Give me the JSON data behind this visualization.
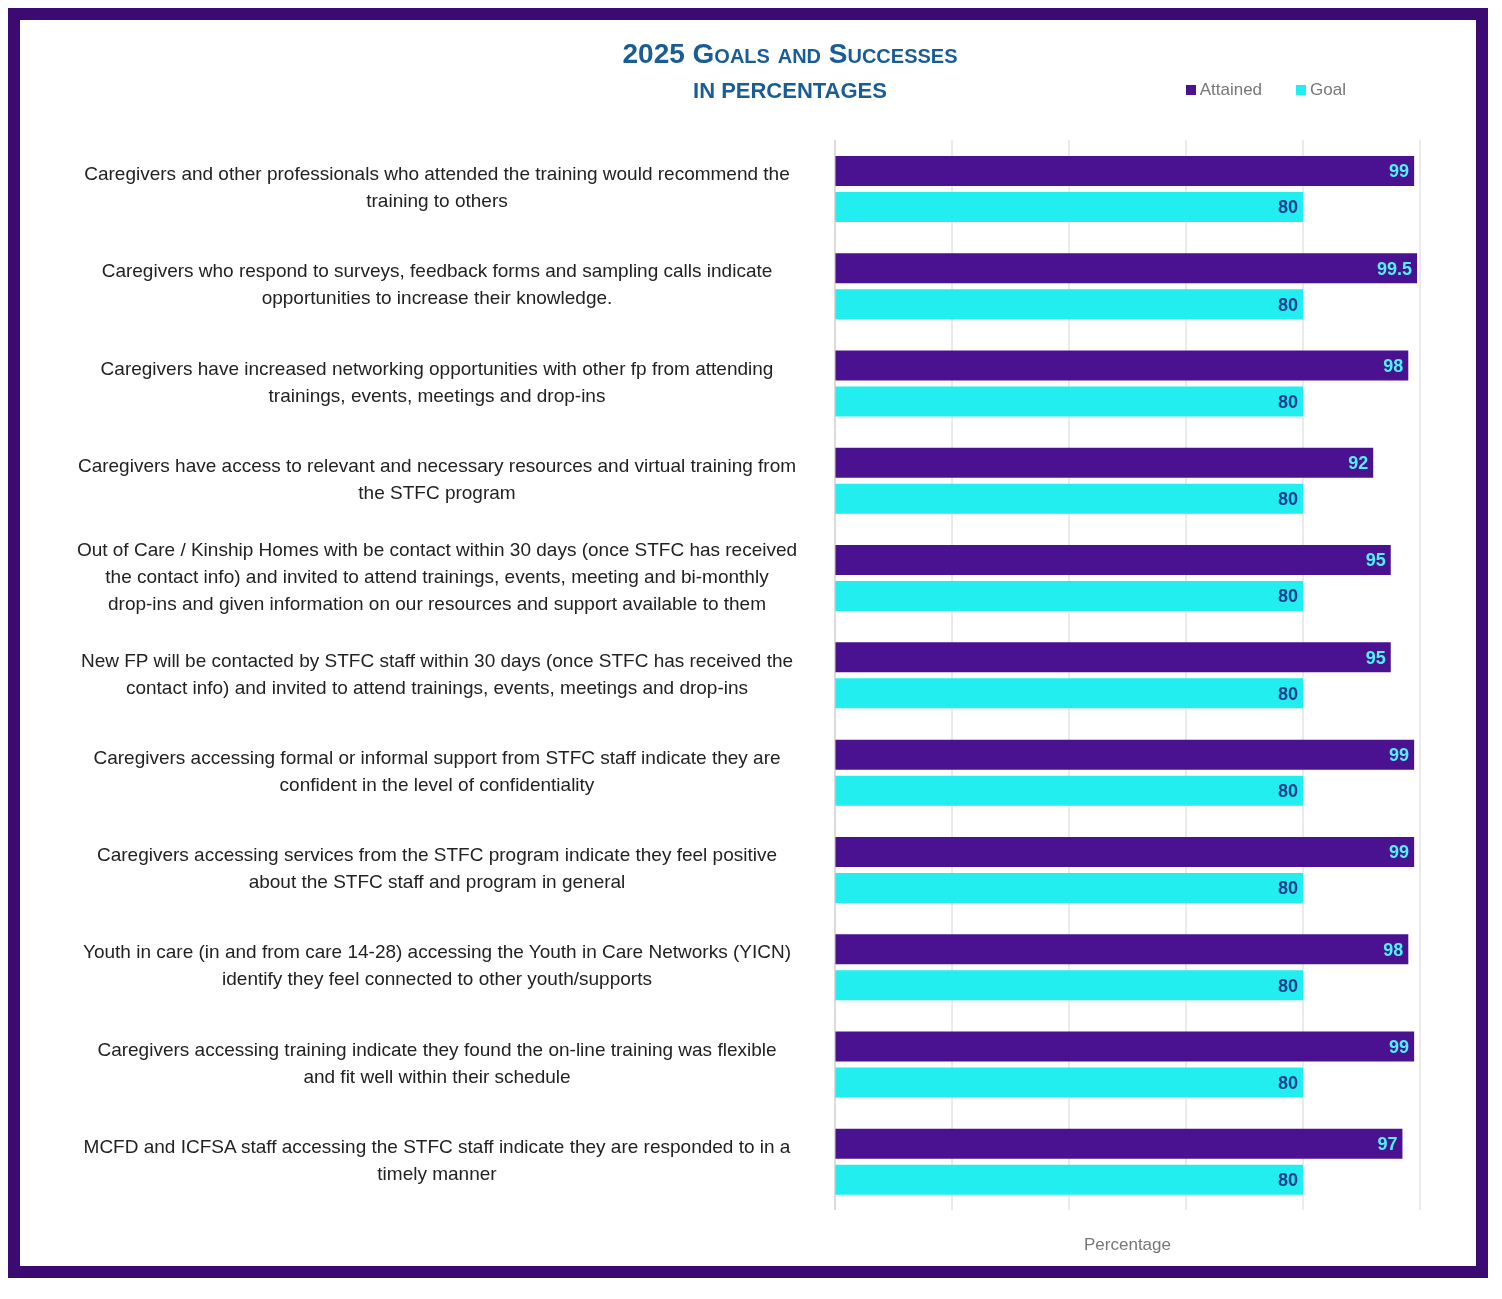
{
  "chart_data": {
    "type": "bar",
    "orientation": "horizontal",
    "title": "2025 Goals and Successes",
    "subtitle": "IN PERCENTAGES",
    "xlabel": "Percentage",
    "categories": [
      "Caregivers and other professionals who attended the training would recommend the training to others",
      "Caregivers who respond to surveys, feedback forms and sampling calls indicate opportunities to increase their knowledge.",
      "Caregivers have increased networking opportunities with other fp from attending trainings, events, meetings and drop-ins",
      "Caregivers have access to relevant and necessary resources and virtual training from the STFC program",
      "Out of Care / Kinship Homes with be contact within 30 days (once STFC has received the contact info) and invited to attend trainings, events, meeting and bi-monthly drop-ins and given information on our resources and support available to them",
      "New FP will be contacted by STFC staff within 30 days (once STFC has received the contact info) and invited to attend trainings, events, meetings and drop-ins",
      "Caregivers accessing formal or informal support from STFC staff indicate they are confident in the level of confidentiality",
      "Caregivers accessing services from the STFC program indicate they feel positive about the STFC staff and program in general",
      "Youth in care (in and from care 14-28) accessing the Youth in Care Networks (YICN) identify they feel connected to other youth/supports",
      "Caregivers accessing training indicate they found the on-line training was flexible and fit well within their schedule",
      "MCFD and ICFSA staff accessing the STFC staff indicate they are responded to in a timely manner"
    ],
    "series": [
      {
        "name": "Attained",
        "color": "#4a1291",
        "values": [
          99,
          99.5,
          98,
          92,
          95,
          95,
          99,
          99,
          98,
          99,
          97
        ]
      },
      {
        "name": "Goal",
        "color": "#22eef0",
        "values": [
          80,
          80,
          80,
          80,
          80,
          80,
          80,
          80,
          80,
          80,
          80
        ]
      }
    ],
    "xlim": [
      0,
      100
    ],
    "tick_labels": "y",
    "grid": "x",
    "legend": "top right",
    "data_labels": true
  }
}
